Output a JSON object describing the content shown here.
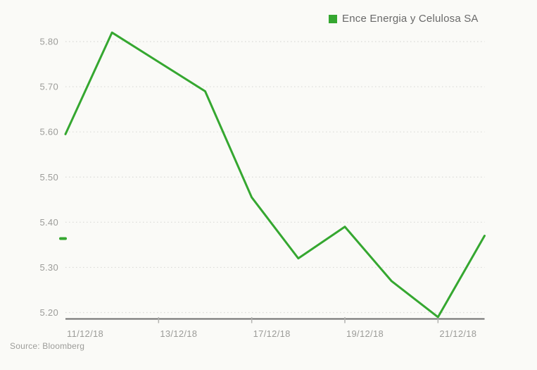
{
  "legend": {
    "label": "Ence Energia y Celulosa SA"
  },
  "source": {
    "text": "Source: Bloomberg"
  },
  "chart_data": {
    "type": "line",
    "title": "",
    "xlabel": "",
    "ylabel": "",
    "x": [
      "11/12/18",
      "12/12/18",
      "13/12/18",
      "14/12/18",
      "17/12/18",
      "18/12/18",
      "19/12/18",
      "20/12/18",
      "21/12/18",
      "24/12/18"
    ],
    "series": [
      {
        "name": "Ence Energia y Celulosa SA",
        "color": "#35a730",
        "values": [
          5.595,
          5.82,
          5.755,
          5.69,
          5.455,
          5.32,
          5.39,
          5.27,
          5.19,
          5.37
        ]
      }
    ],
    "ylim": [
      5.2,
      5.8
    ],
    "y_tick_labels": [
      "5.80",
      "5.70",
      "5.60",
      "5.50",
      "5.40",
      "5.30",
      "5.20"
    ],
    "x_tick_labels": [
      "11/12/18",
      "13/12/18",
      "17/12/18",
      "19/12/18",
      "21/12/18"
    ],
    "x_label_day_indices": [
      0,
      2,
      4,
      6,
      8
    ],
    "x_tick_mark_day_indices": [
      2,
      4,
      6,
      8
    ],
    "grid": "horizontal-dotted",
    "legend_position": "top-right",
    "last_price_marker": 5.37,
    "colors": {
      "line": "#35a730",
      "grid": "#dbdbd7",
      "axis": "#6e6e6e",
      "tick": "#b3b3b0",
      "label": "#9c9c99",
      "legend_text": "#696969",
      "source_text": "#9c9c99",
      "background": "#fafaf7"
    }
  }
}
